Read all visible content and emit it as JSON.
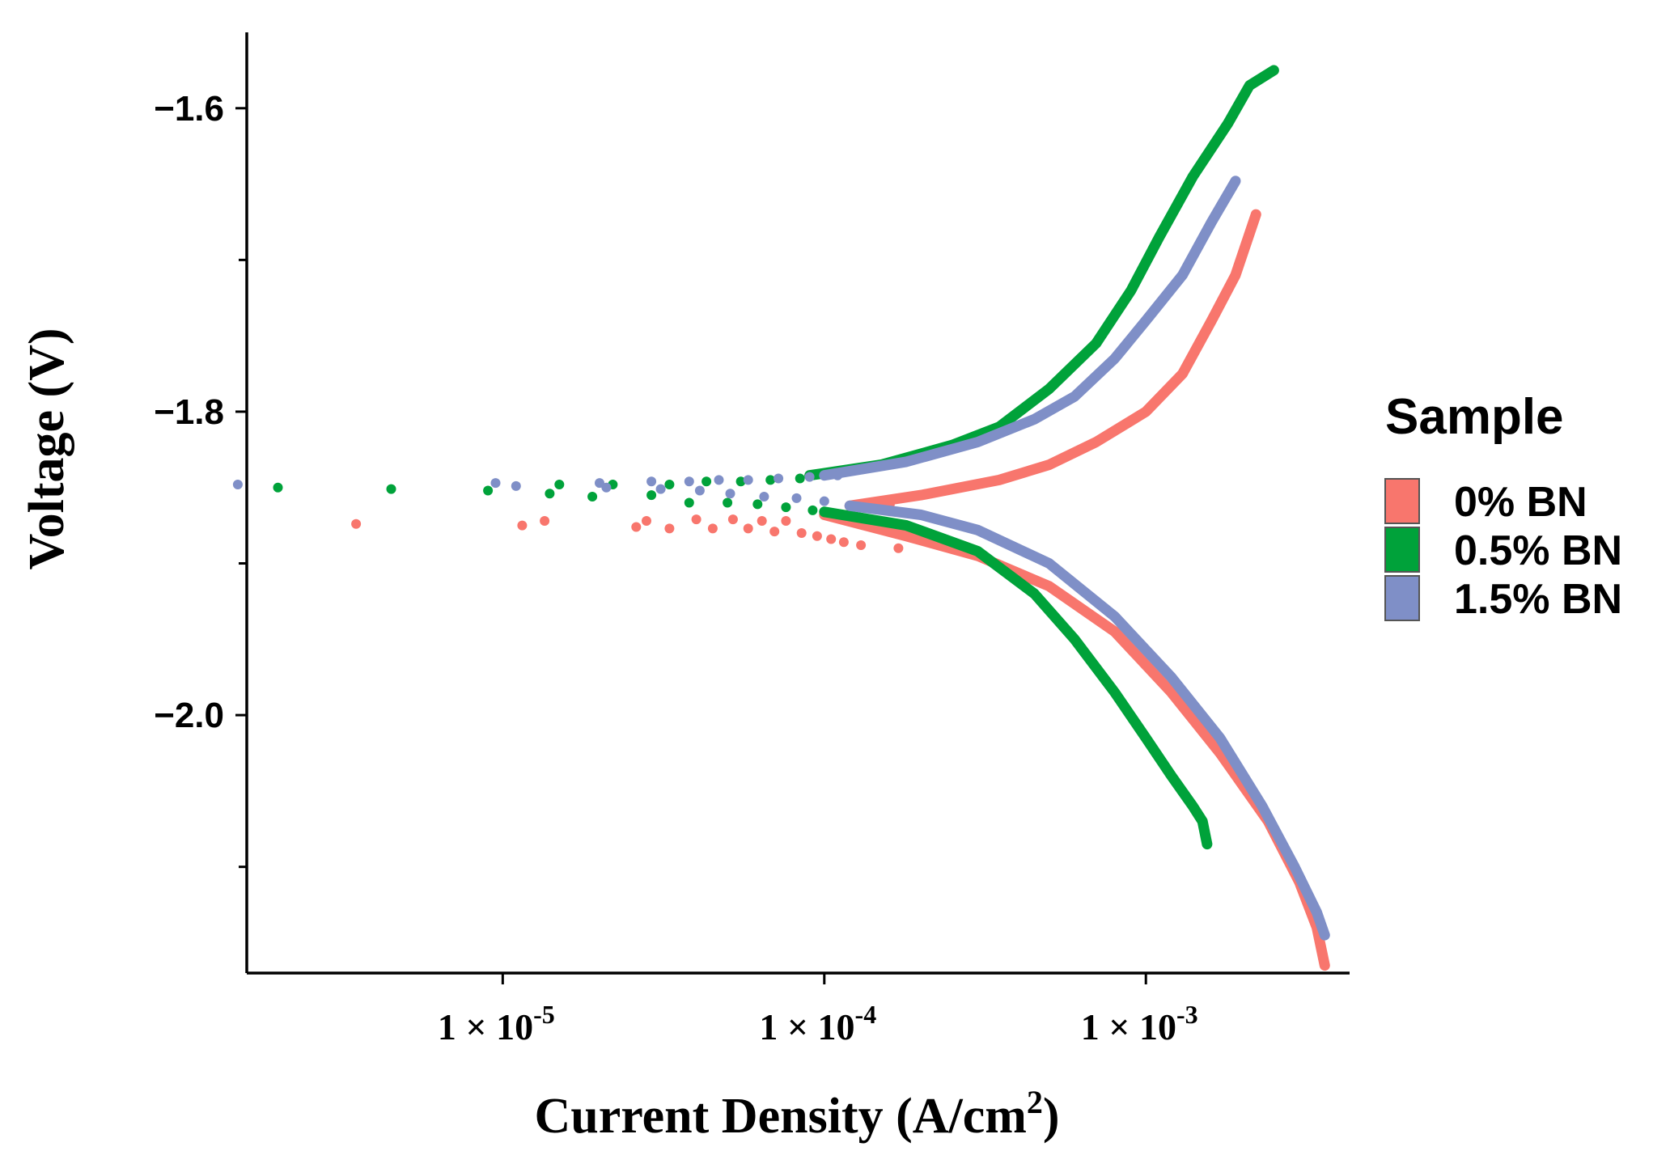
{
  "chart_data": {
    "type": "scatter",
    "title": "",
    "xlabel": "Current Density (A/cm",
    "xlabel_sup": "2",
    "xlabel_end": ")",
    "ylabel": "Voltage (V)",
    "x_scale": "log10",
    "xlim": [
      1.6e-06,
      0.0043
    ],
    "ylim": [
      -1.55,
      -2.17
    ],
    "x_ticks": [
      {
        "value": 1e-05,
        "base": "1 × 10",
        "exp": "-5"
      },
      {
        "value": 0.0001,
        "base": "1 × 10",
        "exp": "-4"
      },
      {
        "value": 0.001,
        "base": "1 × 10",
        "exp": "-3"
      }
    ],
    "y_ticks": [
      {
        "value": -1.6,
        "label": "−1.6"
      },
      {
        "value": -1.8,
        "label": "−1.8"
      },
      {
        "value": -2.0,
        "label": "−2.0"
      }
    ],
    "y_minor_ticks": [
      -1.7,
      -1.9,
      -2.1
    ],
    "legend": {
      "title": "Sample",
      "position": "right"
    },
    "series": [
      {
        "name": "0% BN",
        "color": "#F8766D",
        "anodic": [
          [
            0.00012,
            -1.862
          ],
          [
            0.0002,
            -1.855
          ],
          [
            0.00035,
            -1.845
          ],
          [
            0.0005,
            -1.835
          ],
          [
            0.0007,
            -1.82
          ],
          [
            0.001,
            -1.8
          ],
          [
            0.0013,
            -1.775
          ],
          [
            0.0016,
            -1.74
          ],
          [
            0.0019,
            -1.71
          ],
          [
            0.0022,
            -1.67
          ]
        ],
        "cathodic": [
          [
            0.0001,
            -1.868
          ],
          [
            0.00018,
            -1.882
          ],
          [
            0.0003,
            -1.895
          ],
          [
            0.0005,
            -1.915
          ],
          [
            0.0008,
            -1.945
          ],
          [
            0.0012,
            -1.985
          ],
          [
            0.0017,
            -2.025
          ],
          [
            0.0024,
            -2.07
          ],
          [
            0.003,
            -2.11
          ],
          [
            0.0034,
            -2.14
          ],
          [
            0.0036,
            -2.165
          ]
        ],
        "scatter": [
          [
            3.5e-06,
            -1.874
          ],
          [
            1.15e-05,
            -1.875
          ],
          [
            1.35e-05,
            -1.872
          ],
          [
            2.6e-05,
            -1.876
          ],
          [
            2.8e-05,
            -1.872
          ],
          [
            3.3e-05,
            -1.877
          ],
          [
            4e-05,
            -1.871
          ],
          [
            4.5e-05,
            -1.877
          ],
          [
            5.2e-05,
            -1.871
          ],
          [
            5.8e-05,
            -1.877
          ],
          [
            6.4e-05,
            -1.872
          ],
          [
            7e-05,
            -1.879
          ],
          [
            7.6e-05,
            -1.872
          ],
          [
            8.5e-05,
            -1.88
          ],
          [
            9.5e-05,
            -1.882
          ],
          [
            0.000105,
            -1.884
          ],
          [
            0.000115,
            -1.886
          ],
          [
            0.00013,
            -1.888
          ],
          [
            0.00014,
            -1.862
          ],
          [
            0.00016,
            -1.861
          ],
          [
            0.00017,
            -1.89
          ]
        ]
      },
      {
        "name": "0.5% BN",
        "color": "#00A23A",
        "anodic": [
          [
            9e-05,
            -1.842
          ],
          [
            0.00015,
            -1.835
          ],
          [
            0.00025,
            -1.822
          ],
          [
            0.00035,
            -1.81
          ],
          [
            0.0005,
            -1.785
          ],
          [
            0.0007,
            -1.755
          ],
          [
            0.0009,
            -1.72
          ],
          [
            0.0011,
            -1.685
          ],
          [
            0.0014,
            -1.645
          ],
          [
            0.0018,
            -1.61
          ],
          [
            0.0021,
            -1.585
          ],
          [
            0.0025,
            -1.575
          ]
        ],
        "cathodic": [
          [
            0.0001,
            -1.866
          ],
          [
            0.00018,
            -1.875
          ],
          [
            0.0003,
            -1.892
          ],
          [
            0.00045,
            -1.92
          ],
          [
            0.0006,
            -1.95
          ],
          [
            0.0008,
            -1.985
          ],
          [
            0.001,
            -2.015
          ],
          [
            0.0012,
            -2.04
          ],
          [
            0.0014,
            -2.06
          ],
          [
            0.0015,
            -2.07
          ],
          [
            0.00155,
            -2.085
          ]
        ],
        "scatter": [
          [
            2e-06,
            -1.85
          ],
          [
            4.5e-06,
            -1.851
          ],
          [
            9e-06,
            -1.852
          ],
          [
            1.4e-05,
            -1.854
          ],
          [
            1.5e-05,
            -1.848
          ],
          [
            1.9e-05,
            -1.856
          ],
          [
            2.2e-05,
            -1.848
          ],
          [
            2.9e-05,
            -1.855
          ],
          [
            3.3e-05,
            -1.848
          ],
          [
            3.8e-05,
            -1.86
          ],
          [
            4.3e-05,
            -1.846
          ],
          [
            5e-05,
            -1.86
          ],
          [
            5.5e-05,
            -1.846
          ],
          [
            6.2e-05,
            -1.861
          ],
          [
            6.8e-05,
            -1.845
          ],
          [
            7.6e-05,
            -1.863
          ],
          [
            8.4e-05,
            -1.844
          ],
          [
            9.2e-05,
            -1.865
          ]
        ]
      },
      {
        "name": "1.5% BN",
        "color": "#7F8FC7",
        "anodic": [
          [
            0.0001,
            -1.842
          ],
          [
            0.00018,
            -1.833
          ],
          [
            0.0003,
            -1.82
          ],
          [
            0.00045,
            -1.805
          ],
          [
            0.0006,
            -1.79
          ],
          [
            0.0008,
            -1.765
          ],
          [
            0.001,
            -1.74
          ],
          [
            0.0013,
            -1.71
          ],
          [
            0.0016,
            -1.675
          ],
          [
            0.0019,
            -1.648
          ]
        ],
        "cathodic": [
          [
            0.00012,
            -1.862
          ],
          [
            0.0002,
            -1.868
          ],
          [
            0.0003,
            -1.878
          ],
          [
            0.0005,
            -1.9
          ],
          [
            0.0008,
            -1.935
          ],
          [
            0.0012,
            -1.975
          ],
          [
            0.0017,
            -2.015
          ],
          [
            0.0023,
            -2.06
          ],
          [
            0.0029,
            -2.1
          ],
          [
            0.0034,
            -2.13
          ],
          [
            0.0036,
            -2.145
          ]
        ],
        "scatter": [
          [
            1.5e-06,
            -1.848
          ],
          [
            9.5e-06,
            -1.847
          ],
          [
            1.1e-05,
            -1.849
          ],
          [
            2e-05,
            -1.847
          ],
          [
            2.1e-05,
            -1.85
          ],
          [
            2.9e-05,
            -1.846
          ],
          [
            3.1e-05,
            -1.851
          ],
          [
            3.8e-05,
            -1.846
          ],
          [
            4.1e-05,
            -1.852
          ],
          [
            4.7e-05,
            -1.845
          ],
          [
            5.1e-05,
            -1.854
          ],
          [
            5.8e-05,
            -1.845
          ],
          [
            6.5e-05,
            -1.856
          ],
          [
            7.2e-05,
            -1.844
          ],
          [
            8.2e-05,
            -1.857
          ],
          [
            9e-05,
            -1.843
          ],
          [
            0.0001,
            -1.859
          ],
          [
            0.00011,
            -1.842
          ]
        ]
      }
    ]
  }
}
